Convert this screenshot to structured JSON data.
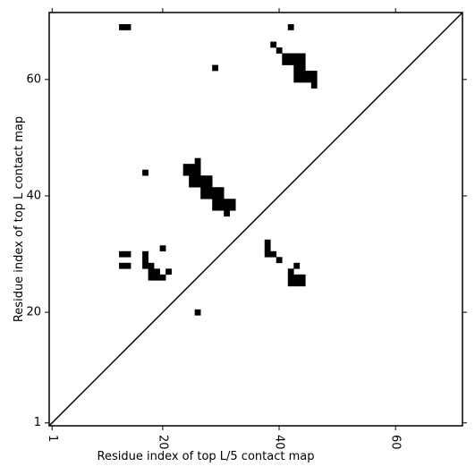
{
  "chart_data": {
    "type": "scatter",
    "marker": "square",
    "color": "#000000",
    "xlabel": "Residue index of top L/5 contact map",
    "ylabel": "Residue index of top L contact map",
    "xlim": [
      0.5,
      71.5
    ],
    "ylim": [
      0.5,
      71.5
    ],
    "xticks": [
      1,
      20,
      40,
      60
    ],
    "yticks": [
      1,
      20,
      40,
      60
    ],
    "x": [
      13,
      14,
      42,
      29,
      39,
      40,
      41,
      42,
      43,
      44,
      41,
      42,
      43,
      44,
      43,
      44,
      43,
      44,
      45,
      46,
      43,
      44,
      45,
      46,
      46,
      17,
      26,
      24,
      25,
      26,
      24,
      25,
      26,
      25,
      26,
      27,
      28,
      25,
      26,
      27,
      28,
      27,
      28,
      29,
      30,
      27,
      28,
      29,
      30,
      29,
      30,
      31,
      32,
      29,
      30,
      31,
      32,
      31,
      13,
      14,
      13,
      14,
      20,
      17,
      17,
      17,
      18,
      18,
      19,
      21,
      18,
      19,
      20,
      26,
      38,
      38,
      38,
      39,
      40,
      43,
      42,
      42,
      43,
      44,
      42,
      43,
      44
    ],
    "y": [
      69,
      69,
      69,
      62,
      66,
      65,
      64,
      64,
      64,
      64,
      63,
      63,
      63,
      63,
      62,
      62,
      61,
      61,
      61,
      61,
      60,
      60,
      60,
      60,
      59,
      44,
      46,
      45,
      45,
      45,
      44,
      44,
      44,
      43,
      43,
      43,
      43,
      42,
      42,
      42,
      42,
      41,
      41,
      41,
      41,
      40,
      40,
      40,
      40,
      39,
      39,
      39,
      39,
      38,
      38,
      38,
      38,
      37,
      30,
      30,
      28,
      28,
      31,
      30,
      29,
      28,
      28,
      27,
      27,
      27,
      26,
      26,
      26,
      20,
      32,
      31,
      30,
      30,
      29,
      28,
      27,
      26,
      26,
      26,
      25,
      25,
      25
    ]
  }
}
